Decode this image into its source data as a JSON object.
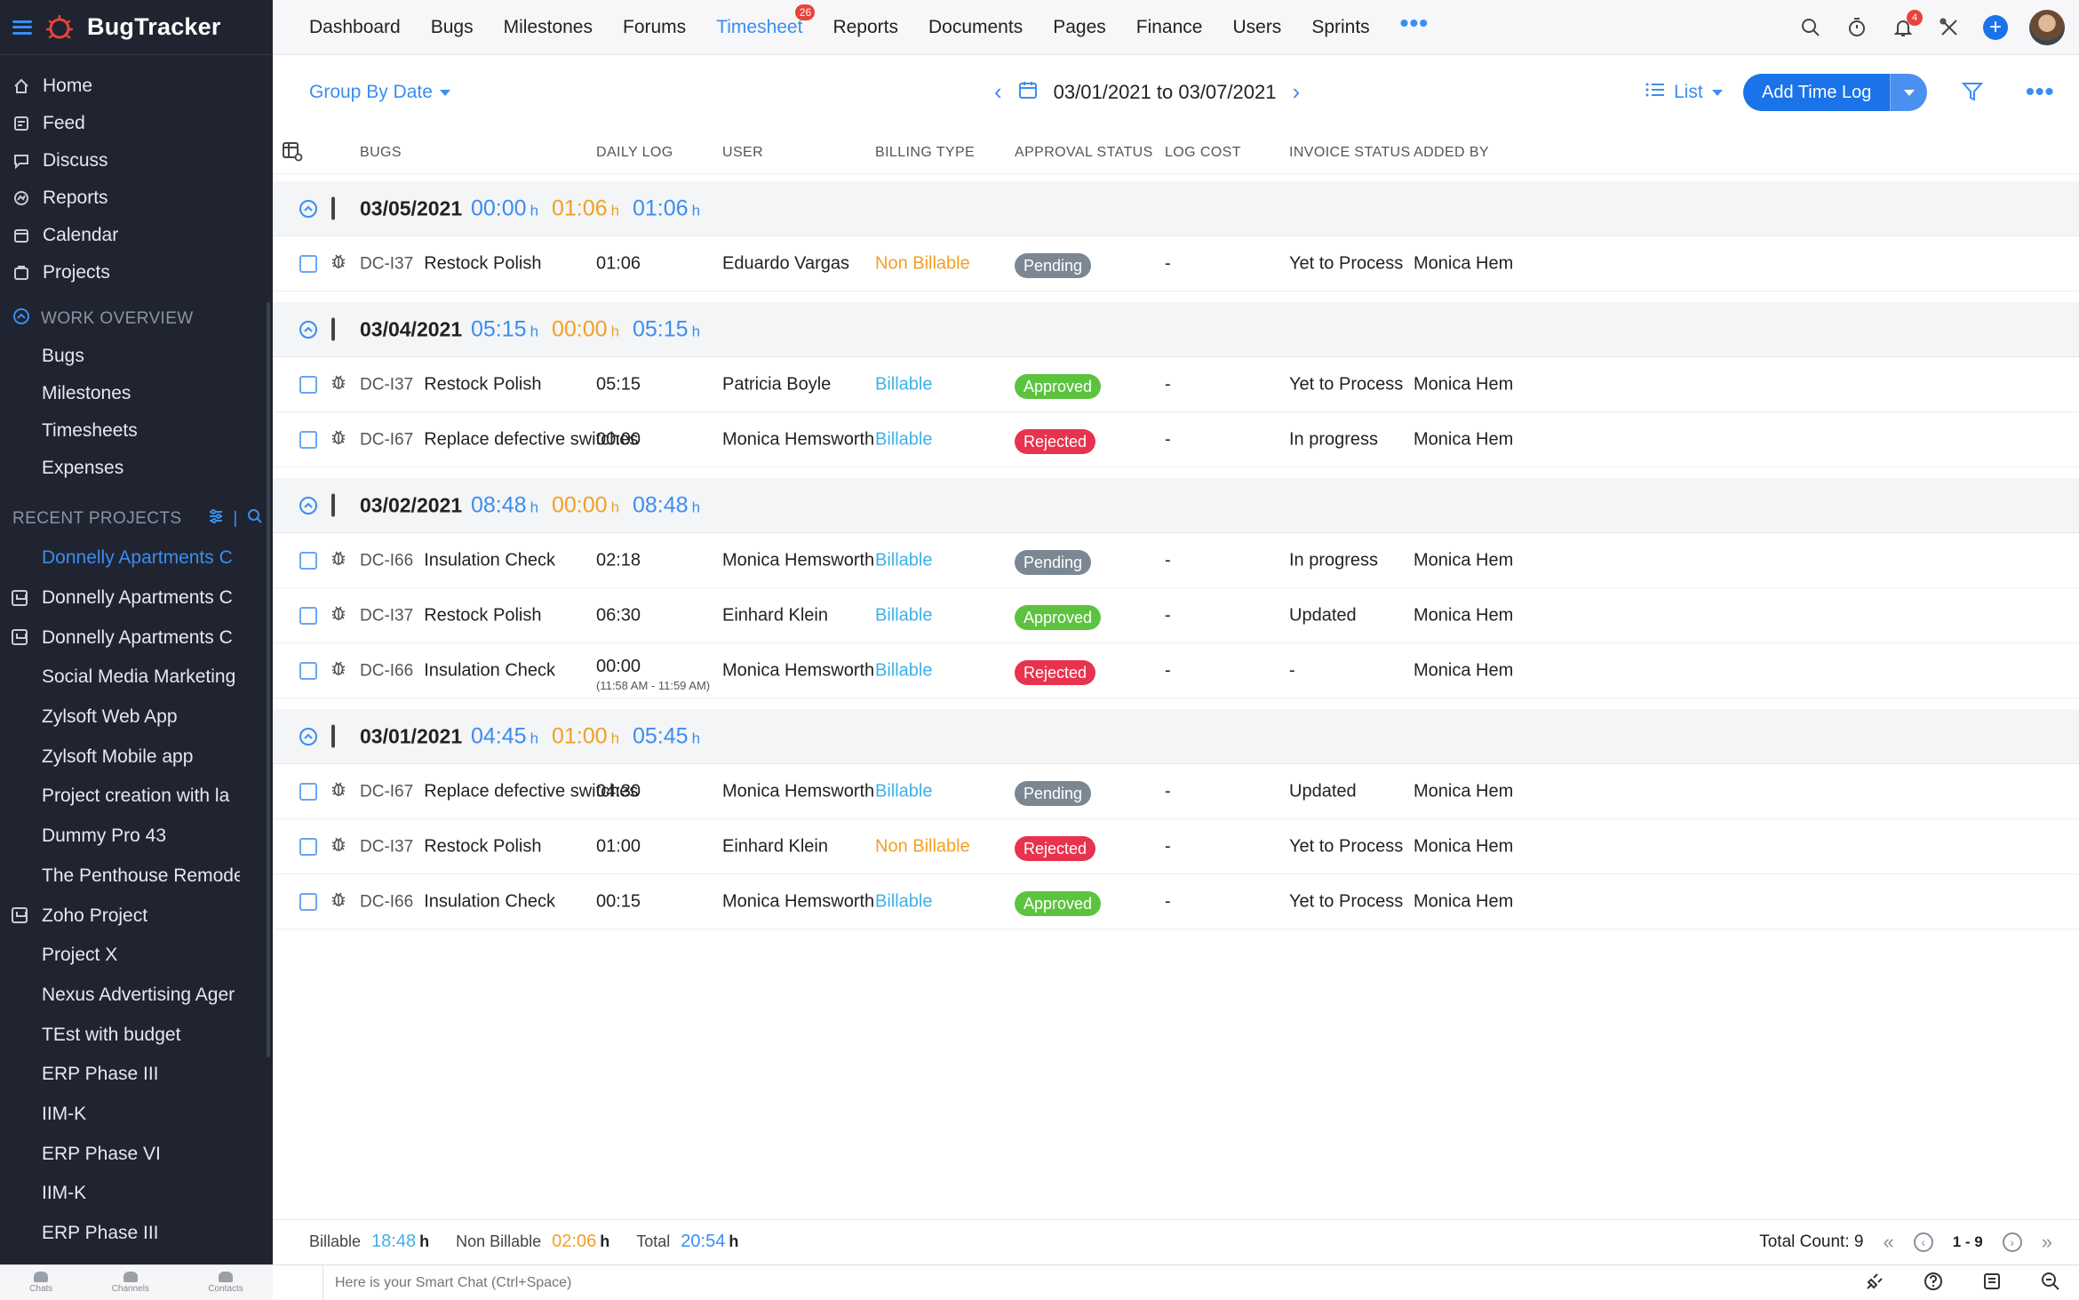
{
  "app": {
    "name": "BugTracker"
  },
  "sidebar": {
    "nav": [
      {
        "label": "Home",
        "icon": "home-icon"
      },
      {
        "label": "Feed",
        "icon": "feed-icon"
      },
      {
        "label": "Discuss",
        "icon": "discuss-icon"
      },
      {
        "label": "Reports",
        "icon": "reports-icon"
      },
      {
        "label": "Calendar",
        "icon": "calendar-icon"
      },
      {
        "label": "Projects",
        "icon": "projects-icon"
      }
    ],
    "work_overview": {
      "title": "WORK OVERVIEW",
      "items": [
        "Bugs",
        "Milestones",
        "Timesheets",
        "Expenses"
      ]
    },
    "recent_projects": {
      "title": "RECENT PROJECTS",
      "items": [
        {
          "label": "Donnelly Apartments C",
          "active": true,
          "icon": false
        },
        {
          "label": "Donnelly Apartments C",
          "active": false,
          "icon": true
        },
        {
          "label": "Donnelly Apartments C",
          "active": false,
          "icon": true
        },
        {
          "label": "Social Media Marketing",
          "active": false,
          "icon": false
        },
        {
          "label": "Zylsoft Web App",
          "active": false,
          "icon": false
        },
        {
          "label": "Zylsoft Mobile app",
          "active": false,
          "icon": false
        },
        {
          "label": "Project creation with la",
          "active": false,
          "icon": false
        },
        {
          "label": "Dummy Pro 43",
          "active": false,
          "icon": false
        },
        {
          "label": "The Penthouse Remode",
          "active": false,
          "icon": false
        },
        {
          "label": "Zoho Project",
          "active": false,
          "icon": true
        },
        {
          "label": "Project X",
          "active": false,
          "icon": false
        },
        {
          "label": "Nexus Advertising Ager",
          "active": false,
          "icon": false
        },
        {
          "label": "TEst with budget",
          "active": false,
          "icon": false
        },
        {
          "label": "ERP Phase III",
          "active": false,
          "icon": false
        },
        {
          "label": "IIM-K",
          "active": false,
          "icon": false
        },
        {
          "label": "ERP Phase VI",
          "active": false,
          "icon": false
        },
        {
          "label": "IIM-K",
          "active": false,
          "icon": false
        },
        {
          "label": "ERP Phase III",
          "active": false,
          "icon": false
        }
      ]
    },
    "bottom": [
      "Chats",
      "Channels",
      "Contacts"
    ]
  },
  "topnav": {
    "tabs": [
      {
        "label": "Dashboard"
      },
      {
        "label": "Bugs"
      },
      {
        "label": "Milestones"
      },
      {
        "label": "Forums"
      },
      {
        "label": "Timesheet",
        "active": true,
        "badge": "26"
      },
      {
        "label": "Reports"
      },
      {
        "label": "Documents"
      },
      {
        "label": "Pages"
      },
      {
        "label": "Finance"
      },
      {
        "label": "Users"
      },
      {
        "label": "Sprints"
      }
    ],
    "notification_count": "4"
  },
  "toolbar": {
    "group_by": "Group By Date",
    "date_range": "03/01/2021 to 03/07/2021",
    "view": "List",
    "add_button": "Add Time Log"
  },
  "table": {
    "columns": [
      "BUGS",
      "DAILY LOG",
      "USER",
      "BILLING TYPE",
      "APPROVAL STATUS",
      "LOG COST",
      "INVOICE STATUS",
      "ADDED BY"
    ],
    "groups": [
      {
        "date": "03/05/2021",
        "billable": "00:00",
        "non_billable": "01:06",
        "total": "01:06",
        "unit": "h",
        "rows": [
          {
            "id": "DC-I37",
            "title": "Restock Polish",
            "log": "01:06",
            "sub": "",
            "user": "Eduardo Vargas",
            "billing": "Non Billable",
            "status": "Pending",
            "cost": "-",
            "invoice": "Yet to Process",
            "added_by": "Monica Hem"
          }
        ]
      },
      {
        "date": "03/04/2021",
        "billable": "05:15",
        "non_billable": "00:00",
        "total": "05:15",
        "unit": "h",
        "rows": [
          {
            "id": "DC-I37",
            "title": "Restock Polish",
            "log": "05:15",
            "sub": "",
            "user": "Patricia Boyle",
            "billing": "Billable",
            "status": "Approved",
            "cost": "-",
            "invoice": "Yet to Process",
            "added_by": "Monica Hem"
          },
          {
            "id": "DC-I67",
            "title": "Replace defective switches",
            "log": "00:00",
            "sub": "",
            "user": "Monica Hemsworth",
            "billing": "Billable",
            "status": "Rejected",
            "cost": "-",
            "invoice": "In progress",
            "added_by": "Monica Hem"
          }
        ]
      },
      {
        "date": "03/02/2021",
        "billable": "08:48",
        "non_billable": "00:00",
        "total": "08:48",
        "unit": "h",
        "rows": [
          {
            "id": "DC-I66",
            "title": "Insulation Check",
            "log": "02:18",
            "sub": "",
            "user": "Monica Hemsworth",
            "billing": "Billable",
            "status": "Pending",
            "cost": "-",
            "invoice": "In progress",
            "added_by": "Monica Hem"
          },
          {
            "id": "DC-I37",
            "title": "Restock Polish",
            "log": "06:30",
            "sub": "",
            "user": "Einhard Klein",
            "billing": "Billable",
            "status": "Approved",
            "cost": "-",
            "invoice": "Updated",
            "added_by": "Monica Hem"
          },
          {
            "id": "DC-I66",
            "title": "Insulation Check",
            "log": "00:00",
            "sub": "(11:58 AM - 11:59 AM)",
            "user": "Monica Hemsworth",
            "billing": "Billable",
            "status": "Rejected",
            "cost": "-",
            "invoice": "-",
            "added_by": "Monica Hem"
          }
        ]
      },
      {
        "date": "03/01/2021",
        "billable": "04:45",
        "non_billable": "01:00",
        "total": "05:45",
        "unit": "h",
        "rows": [
          {
            "id": "DC-I67",
            "title": "Replace defective switches",
            "log": "04:30",
            "sub": "",
            "user": "Monica Hemsworth",
            "billing": "Billable",
            "status": "Pending",
            "cost": "-",
            "invoice": "Updated",
            "added_by": "Monica Hem"
          },
          {
            "id": "DC-I37",
            "title": "Restock Polish",
            "log": "01:00",
            "sub": "",
            "user": "Einhard Klein",
            "billing": "Non Billable",
            "status": "Rejected",
            "cost": "-",
            "invoice": "Yet to Process",
            "added_by": "Monica Hem"
          },
          {
            "id": "DC-I66",
            "title": "Insulation Check",
            "log": "00:15",
            "sub": "",
            "user": "Monica Hemsworth",
            "billing": "Billable",
            "status": "Approved",
            "cost": "-",
            "invoice": "Yet to Process",
            "added_by": "Monica Hem"
          }
        ]
      }
    ]
  },
  "footer": {
    "billable_label": "Billable",
    "billable_value": "18:48",
    "non_billable_label": "Non Billable",
    "non_billable_value": "02:06",
    "total_label": "Total",
    "total_value": "20:54",
    "unit": "h",
    "total_count": "Total Count: 9",
    "page_range": "1 - 9"
  },
  "chat": {
    "placeholder": "Here is your Smart Chat (Ctrl+Space)"
  },
  "colors": {
    "accent": "#3b8df0",
    "sidebar_bg": "#1f2430",
    "billable": "#3fb0e8",
    "non_billable": "#f2a024",
    "pending": "#7c8794",
    "approved": "#5cc33f",
    "rejected": "#e8334f"
  }
}
